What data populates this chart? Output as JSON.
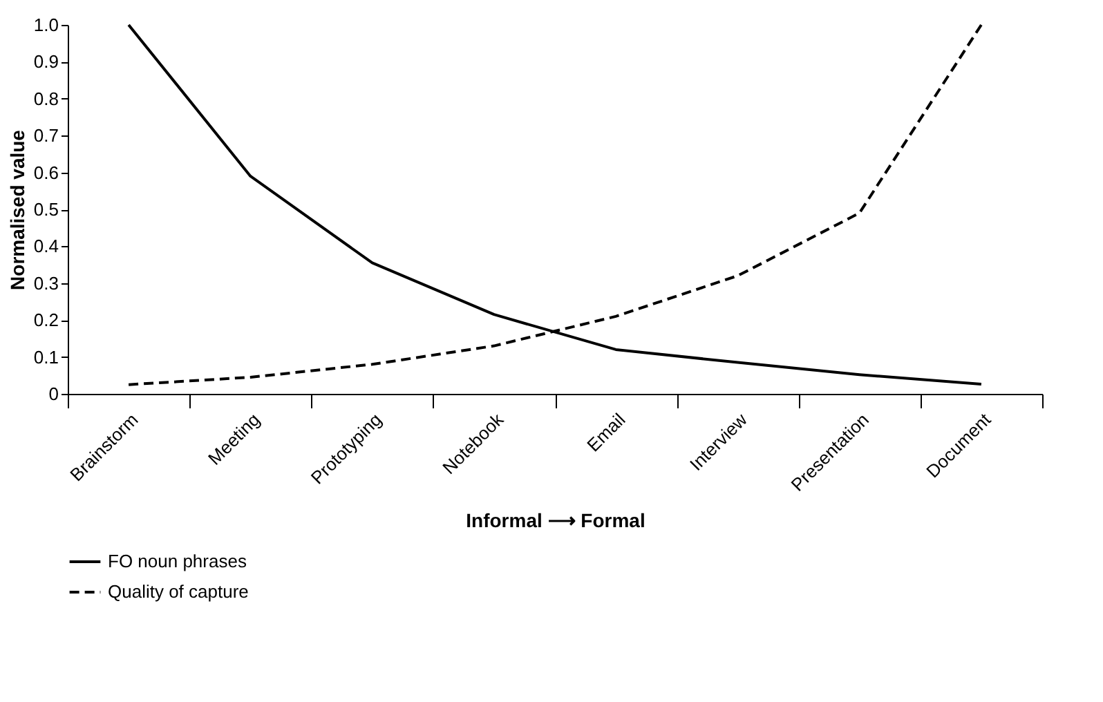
{
  "chart_data": {
    "type": "line",
    "xlabel": "Informal ⟶ Formal",
    "ylabel": "Normalised value",
    "categories": [
      "Brainstorm",
      "Meeting",
      "Prototyping",
      "Notebook",
      "Email",
      "Interview",
      "Presentation",
      "Document"
    ],
    "series": [
      {
        "name": "FO noun phrases",
        "color": "#000000",
        "line_style": "solid",
        "values": [
          1.0,
          0.59,
          0.355,
          0.215,
          0.12,
          0.085,
          0.052,
          0.026
        ]
      },
      {
        "name": "Quality of capture",
        "color": "#000000",
        "line_style": "dashed",
        "values": [
          0.025,
          0.045,
          0.08,
          0.13,
          0.21,
          0.32,
          0.49,
          1.0
        ]
      }
    ],
    "ylim": [
      0,
      1
    ],
    "yticks": [
      {
        "value": 0,
        "label": "0"
      },
      0.1,
      0.2,
      0.3,
      0.4,
      0.5,
      0.6,
      0.7,
      0.8,
      0.9,
      {
        "value": 1,
        "label": "1.0"
      }
    ],
    "grid": false,
    "legend": "bottom left",
    "marker": "none"
  }
}
